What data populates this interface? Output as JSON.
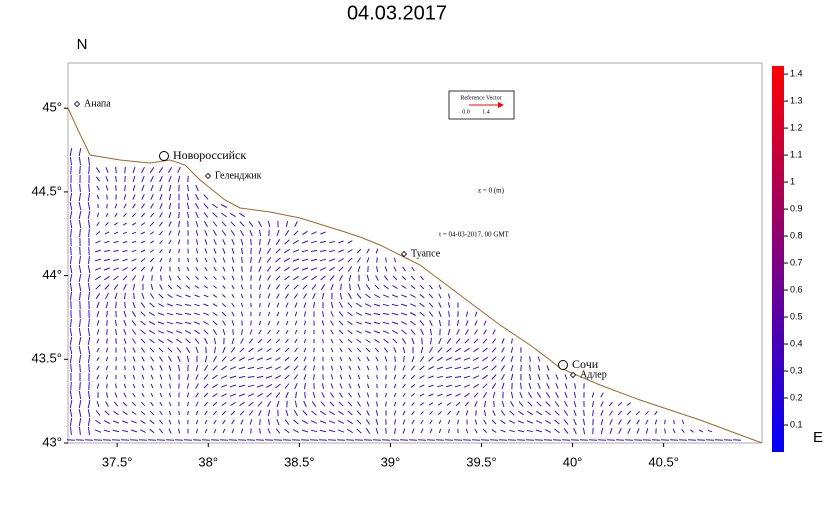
{
  "title": "04.03.2017",
  "map": {
    "xlim": [
      37.23,
      41.04
    ],
    "ylim": [
      43,
      45.27
    ],
    "xticks": [
      {
        "value": 37.5,
        "label": "37.5°"
      },
      {
        "value": 38,
        "label": "38°"
      },
      {
        "value": 38.5,
        "label": "38.5°"
      },
      {
        "value": 39,
        "label": "39°"
      },
      {
        "value": 39.5,
        "label": "39.5°"
      },
      {
        "value": 40,
        "label": "40°"
      },
      {
        "value": 40.5,
        "label": "40.5°"
      }
    ],
    "yticks": [
      {
        "value": 43,
        "label": "43°"
      },
      {
        "value": 43.5,
        "label": "43.5°"
      },
      {
        "value": 44,
        "label": "44°"
      },
      {
        "value": 44.5,
        "label": "44.5°"
      },
      {
        "value": 45,
        "label": "45°"
      }
    ],
    "ylabel": "N",
    "xlabel": "E",
    "coast_color": "#a0642a",
    "vector_color": "#3a10d0",
    "cities": [
      "Анапа",
      "Новороссийск",
      "Геленджик",
      "Туапсе",
      "Сочи",
      "Адлер"
    ],
    "depth_label": "z = 0 (m)",
    "time_label": "t = 04-03-2017, 00 GMT",
    "reference": {
      "title": "Reference Vector",
      "min_label": "0.0",
      "max_label": "1.4",
      "color": "#ff0000"
    }
  },
  "colorbar": {
    "lim": [
      0,
      1.43
    ],
    "ticks": [
      0.1,
      0.2,
      0.3,
      0.4,
      0.5,
      0.6,
      0.7,
      0.8,
      0.9,
      1,
      1.1,
      1.2,
      1.3,
      1.4
    ],
    "colors": [
      "#0000ff",
      "#ff0000"
    ]
  }
}
